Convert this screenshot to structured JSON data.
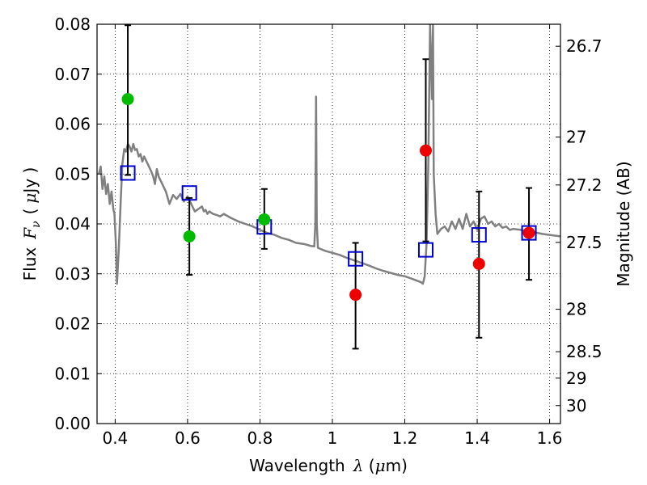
{
  "chart_data": {
    "type": "scatter",
    "xlabel": "Wavelength",
    "ylabel": "Flux",
    "ylabel_right": "Magnitude (AB)",
    "xlim": [
      0.35,
      1.63
    ],
    "ylim": [
      0.0,
      0.08
    ],
    "grid": true,
    "x_ticks": [
      0.4,
      0.6,
      0.8,
      1.0,
      1.2,
      1.4,
      1.6
    ],
    "x_tick_labels": [
      "0.4",
      "0.6",
      "0.8",
      "1",
      "1.2",
      "1.4",
      "1.6"
    ],
    "y_ticks": [
      0.0,
      0.01,
      0.02,
      0.03,
      0.04,
      0.05,
      0.06,
      0.07,
      0.08
    ],
    "y_tick_labels": [
      "0.00",
      "0.01",
      "0.02",
      "0.03",
      "0.04",
      "0.05",
      "0.06",
      "0.07",
      "0.08"
    ],
    "right_ticks": [
      {
        "label": "26.7",
        "flux": 0.0756
      },
      {
        "label": "27",
        "flux": 0.0574
      },
      {
        "label": "27.2",
        "flux": 0.0478
      },
      {
        "label": "27.5",
        "flux": 0.0363
      },
      {
        "label": "28",
        "flux": 0.0229
      },
      {
        "label": "28.5",
        "flux": 0.0144
      },
      {
        "label": "29",
        "flux": 0.0091
      },
      {
        "label": "30",
        "flux": 0.0036
      }
    ],
    "colors": {
      "model": "#808080",
      "box": "#0000cc",
      "green": "#00bb00",
      "red": "#ee0000",
      "errorbar": "#000000"
    },
    "model_spectrum": {
      "x": [
        0.355,
        0.36,
        0.365,
        0.37,
        0.375,
        0.38,
        0.385,
        0.39,
        0.395,
        0.398,
        0.402,
        0.405,
        0.41,
        0.415,
        0.42,
        0.425,
        0.43,
        0.435,
        0.44,
        0.445,
        0.45,
        0.455,
        0.46,
        0.465,
        0.47,
        0.475,
        0.48,
        0.49,
        0.5,
        0.505,
        0.51,
        0.515,
        0.52,
        0.53,
        0.54,
        0.55,
        0.56,
        0.57,
        0.58,
        0.59,
        0.6,
        0.61,
        0.62,
        0.63,
        0.64,
        0.645,
        0.65,
        0.655,
        0.66,
        0.67,
        0.68,
        0.69,
        0.7,
        0.72,
        0.74,
        0.76,
        0.78,
        0.8,
        0.82,
        0.84,
        0.86,
        0.88,
        0.9,
        0.92,
        0.94,
        0.95,
        0.953,
        0.955,
        0.957,
        0.96,
        0.98,
        1.0,
        1.02,
        1.04,
        1.06,
        1.08,
        1.1,
        1.12,
        1.14,
        1.16,
        1.18,
        1.2,
        1.22,
        1.245,
        1.25,
        1.255,
        1.26,
        1.265,
        1.27,
        1.275,
        1.278,
        1.28,
        1.285,
        1.29,
        1.3,
        1.31,
        1.32,
        1.33,
        1.34,
        1.35,
        1.36,
        1.37,
        1.38,
        1.39,
        1.4,
        1.41,
        1.42,
        1.43,
        1.44,
        1.45,
        1.46,
        1.47,
        1.48,
        1.49,
        1.5,
        1.52,
        1.54,
        1.56,
        1.58,
        1.6,
        1.63
      ],
      "y": [
        0.05,
        0.0515,
        0.047,
        0.0495,
        0.046,
        0.048,
        0.044,
        0.0465,
        0.043,
        0.042,
        0.036,
        0.028,
        0.035,
        0.044,
        0.052,
        0.055,
        0.0545,
        0.056,
        0.0555,
        0.0545,
        0.056,
        0.0548,
        0.055,
        0.0535,
        0.054,
        0.0525,
        0.0535,
        0.052,
        0.0505,
        0.0495,
        0.048,
        0.051,
        0.0495,
        0.048,
        0.0465,
        0.044,
        0.0458,
        0.045,
        0.046,
        0.0445,
        0.0455,
        0.044,
        0.0425,
        0.043,
        0.0435,
        0.0425,
        0.0428,
        0.042,
        0.0425,
        0.042,
        0.0418,
        0.0415,
        0.042,
        0.0412,
        0.0405,
        0.04,
        0.0395,
        0.0388,
        0.0382,
        0.0378,
        0.0372,
        0.0368,
        0.0362,
        0.036,
        0.0356,
        0.0355,
        0.04,
        0.0655,
        0.04,
        0.0352,
        0.0346,
        0.0342,
        0.0338,
        0.0332,
        0.0327,
        0.0322,
        0.0317,
        0.0311,
        0.0306,
        0.0302,
        0.0298,
        0.0295,
        0.029,
        0.0283,
        0.028,
        0.0295,
        0.036,
        0.052,
        0.08,
        0.065,
        0.08,
        0.05,
        0.042,
        0.038,
        0.039,
        0.0395,
        0.0385,
        0.0405,
        0.039,
        0.041,
        0.039,
        0.042,
        0.0395,
        0.0405,
        0.0388,
        0.041,
        0.0415,
        0.04,
        0.0405,
        0.0395,
        0.04,
        0.0392,
        0.0395,
        0.0388,
        0.039,
        0.0388,
        0.0385,
        0.0383,
        0.038,
        0.0378,
        0.0375
      ]
    },
    "points": [
      {
        "x": 0.435,
        "flux": 0.065,
        "err_lo": 0.0498,
        "err_hi": 0.0798,
        "box": 0.0502,
        "color": "green"
      },
      {
        "x": 0.605,
        "flux": 0.0375,
        "err_lo": 0.0298,
        "err_hi": 0.0452,
        "box": 0.0462,
        "color": "green"
      },
      {
        "x": 0.812,
        "flux": 0.0409,
        "err_lo": 0.035,
        "err_hi": 0.047,
        "box": 0.0394,
        "color": "green"
      },
      {
        "x": 1.064,
        "flux": 0.0258,
        "err_lo": 0.015,
        "err_hi": 0.0362,
        "box": 0.033,
        "color": "red"
      },
      {
        "x": 1.258,
        "flux": 0.0547,
        "err_lo": 0.0365,
        "err_hi": 0.073,
        "box": 0.0348,
        "color": "red"
      },
      {
        "x": 1.405,
        "flux": 0.032,
        "err_lo": 0.0172,
        "err_hi": 0.0465,
        "box": 0.0378,
        "color": "red"
      },
      {
        "x": 1.543,
        "flux": 0.0382,
        "err_lo": 0.0288,
        "err_hi": 0.0472,
        "box": 0.0382,
        "color": "red"
      }
    ]
  }
}
